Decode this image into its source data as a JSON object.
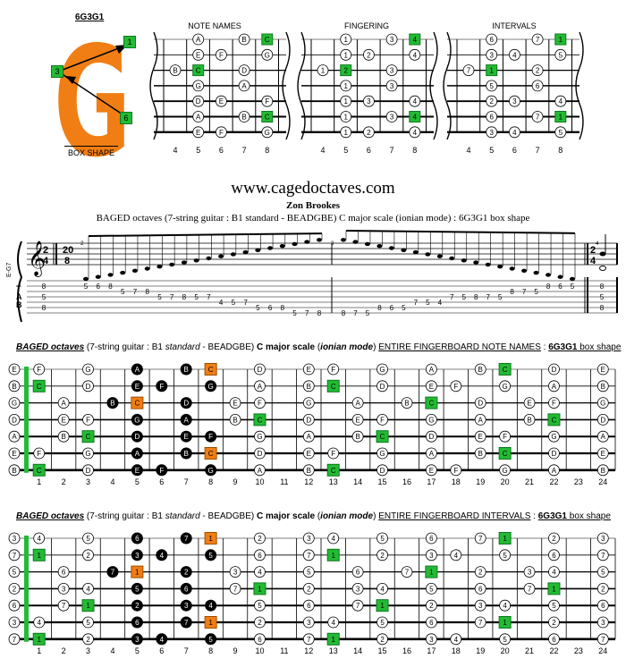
{
  "shape": {
    "name": "6G3G1",
    "big_letter": "G",
    "label": "BOX SHAPE",
    "markers": [
      "1",
      "3",
      "6"
    ]
  },
  "diagrams": {
    "titles": [
      "NOTE NAMES",
      "FINGERING",
      "INTERVALS"
    ],
    "fret_numbers": [
      "4",
      "5",
      "6",
      "7",
      "8"
    ],
    "note_names": [
      [
        "A",
        "B",
        "C"
      ],
      [
        "E",
        "F",
        "G"
      ],
      [
        "B",
        "C",
        "D"
      ],
      [
        "G",
        "A"
      ],
      [
        "D",
        "E",
        "F"
      ],
      [
        "A",
        "B",
        "C"
      ],
      [
        "E",
        "F",
        "G"
      ]
    ],
    "fingering": [
      [
        "1",
        "3",
        "4"
      ],
      [
        "1",
        "2",
        "4"
      ],
      [
        "1",
        "2",
        "3"
      ],
      [
        "1",
        "3"
      ],
      [
        "1",
        "3",
        "4"
      ],
      [
        "1",
        "3",
        "4"
      ],
      [
        "1",
        "2",
        "4"
      ]
    ],
    "intervals": [
      [
        "6",
        "7",
        "1"
      ],
      [
        "3",
        "4",
        "5"
      ],
      [
        "7",
        "1",
        "2"
      ],
      [
        "5",
        "6"
      ],
      [
        "2",
        "3",
        "4"
      ],
      [
        "6",
        "7",
        "1"
      ],
      [
        "3",
        "4",
        "5"
      ]
    ]
  },
  "header": {
    "website": "www.cagedoctaves.com",
    "author": "Zon Brookes",
    "subtitle": "BAGED octaves (7-string guitar : B1 standard - BEADGBE) C major scale (ionian mode) : 6G3G1 box shape"
  },
  "notation": {
    "time_sig_top": "2",
    "time_sig_bottom": "4",
    "time_sig2_top": "20",
    "time_sig2_bottom": "8",
    "measure1": "2",
    "measure2": "3",
    "measure3": "4",
    "staff_label": "E-G7",
    "tab_letters": [
      "T",
      "A",
      "B"
    ],
    "tab_left": [
      "8",
      "5",
      "8"
    ],
    "tab_right": [
      "8",
      "5",
      "8"
    ],
    "tab_up": [
      {
        "s": 7,
        "f": "5"
      },
      {
        "s": 7,
        "f": "6"
      },
      {
        "s": 7,
        "f": "8"
      },
      {
        "s": 6,
        "f": "5"
      },
      {
        "s": 6,
        "f": "7"
      },
      {
        "s": 6,
        "f": "8"
      },
      {
        "s": 5,
        "f": "5"
      },
      {
        "s": 5,
        "f": "7"
      },
      {
        "s": 5,
        "f": "8"
      },
      {
        "s": 4,
        "f": "5"
      },
      {
        "s": 4,
        "f": "7"
      },
      {
        "s": 3,
        "f": "4"
      },
      {
        "s": 3,
        "f": "5"
      },
      {
        "s": 3,
        "f": "7"
      },
      {
        "s": 2,
        "f": "5"
      },
      {
        "s": 2,
        "f": "6"
      },
      {
        "s": 2,
        "f": "8"
      },
      {
        "s": 1,
        "f": "5"
      },
      {
        "s": 1,
        "f": "7"
      },
      {
        "s": 1,
        "f": "8"
      }
    ],
    "tab_down": [
      {
        "s": 1,
        "f": "8"
      },
      {
        "s": 1,
        "f": "7"
      },
      {
        "s": 1,
        "f": "5"
      },
      {
        "s": 2,
        "f": "8"
      },
      {
        "s": 2,
        "f": "6"
      },
      {
        "s": 2,
        "f": "5"
      },
      {
        "s": 3,
        "f": "7"
      },
      {
        "s": 3,
        "f": "5"
      },
      {
        "s": 3,
        "f": "4"
      },
      {
        "s": 4,
        "f": "7"
      },
      {
        "s": 4,
        "f": "5"
      },
      {
        "s": 5,
        "f": "8"
      },
      {
        "s": 5,
        "f": "7"
      },
      {
        "s": 5,
        "f": "5"
      },
      {
        "s": 6,
        "f": "8"
      },
      {
        "s": 6,
        "f": "7"
      },
      {
        "s": 6,
        "f": "5"
      },
      {
        "s": 7,
        "f": "8"
      },
      {
        "s": 7,
        "f": "6"
      },
      {
        "s": 7,
        "f": "5"
      }
    ]
  },
  "fingerboard_notes": {
    "title_parts": [
      "BAGED octaves",
      " (7-string guitar : B1 ",
      "standard",
      " - BEADGBE) ",
      "C major scale",
      " (",
      "ionian mode",
      ") ",
      "ENTIRE FINGERBOARD NOTE NAMES",
      " : ",
      "6G3G1",
      " box shape"
    ],
    "strings": [
      {
        "open": "E",
        "notes": [
          "F",
          "",
          "G",
          "",
          "A",
          "",
          "B",
          "C",
          "",
          "D",
          "",
          "E",
          "F",
          "",
          "G",
          "",
          "A",
          "",
          "B",
          "C",
          "",
          "D",
          "",
          "E"
        ]
      },
      {
        "open": "B",
        "notes": [
          "C",
          "",
          "D",
          "",
          "E",
          "F",
          "",
          "G",
          "",
          "A",
          "",
          "B",
          "C",
          "",
          "D",
          "",
          "E",
          "F",
          "",
          "G",
          "",
          "A",
          "",
          "B"
        ]
      },
      {
        "open": "G",
        "notes": [
          "",
          "A",
          "",
          "B",
          "C",
          "",
          "D",
          "",
          "E",
          "F",
          "",
          "G",
          "",
          "A",
          "",
          "B",
          "C",
          "",
          "D",
          "",
          "E",
          "F",
          "",
          "G"
        ]
      },
      {
        "open": "D",
        "notes": [
          "",
          "E",
          "F",
          "",
          "G",
          "",
          "A",
          "",
          "B",
          "C",
          "",
          "D",
          "",
          "E",
          "F",
          "",
          "G",
          "",
          "A",
          "",
          "B",
          "C",
          "",
          "D"
        ]
      },
      {
        "open": "A",
        "notes": [
          "",
          "B",
          "C",
          "",
          "D",
          "",
          "E",
          "F",
          "",
          "G",
          "",
          "A",
          "",
          "B",
          "C",
          "",
          "D",
          "",
          "E",
          "F",
          "",
          "G",
          "",
          "A"
        ]
      },
      {
        "open": "E",
        "notes": [
          "F",
          "",
          "G",
          "",
          "A",
          "",
          "B",
          "C",
          "",
          "D",
          "",
          "E",
          "F",
          "",
          "G",
          "",
          "A",
          "",
          "B",
          "C",
          "",
          "D",
          "",
          "E"
        ]
      },
      {
        "open": "B",
        "notes": [
          "C",
          "",
          "D",
          "",
          "E",
          "F",
          "",
          "G",
          "",
          "A",
          "",
          "B",
          "C",
          "",
          "D",
          "",
          "E",
          "F",
          "",
          "G",
          "",
          "A",
          "",
          "B"
        ]
      }
    ],
    "fret_labels": [
      "1",
      "2",
      "3",
      "4",
      "5",
      "6",
      "7",
      "8",
      "9",
      "10",
      "11",
      "12",
      "13",
      "14",
      "15",
      "16",
      "17",
      "18",
      "19",
      "20",
      "21",
      "22",
      "23",
      "24"
    ]
  },
  "fingerboard_intervals": {
    "title_parts": [
      "BAGED octaves",
      " (7-string guitar : B1 ",
      "standard",
      " - BEADGBE) ",
      "C major scale",
      " (",
      "ionian mode",
      ") ",
      "ENTIRE FINGERBOARD INTERVALS",
      " : ",
      "6G3G1",
      " box shape"
    ],
    "strings": [
      {
        "open": "3",
        "notes": [
          "4",
          "",
          "5",
          "",
          "6",
          "",
          "7",
          "1",
          "",
          "2",
          "",
          "3",
          "4",
          "",
          "5",
          "",
          "6",
          "",
          "7",
          "1",
          "",
          "2",
          "",
          "3"
        ]
      },
      {
        "open": "7",
        "notes": [
          "1",
          "",
          "2",
          "",
          "3",
          "4",
          "",
          "5",
          "",
          "6",
          "",
          "7",
          "1",
          "",
          "2",
          "",
          "3",
          "4",
          "",
          "5",
          "",
          "6",
          "",
          "7"
        ]
      },
      {
        "open": "5",
        "notes": [
          "",
          "6",
          "",
          "7",
          "1",
          "",
          "2",
          "",
          "3",
          "4",
          "",
          "5",
          "",
          "6",
          "",
          "7",
          "1",
          "",
          "2",
          "",
          "3",
          "4",
          "",
          "5"
        ]
      },
      {
        "open": "2",
        "notes": [
          "",
          "3",
          "4",
          "",
          "5",
          "",
          "6",
          "",
          "7",
          "1",
          "",
          "2",
          "",
          "3",
          "4",
          "",
          "5",
          "",
          "6",
          "",
          "7",
          "1",
          "",
          "2"
        ]
      },
      {
        "open": "6",
        "notes": [
          "",
          "7",
          "1",
          "",
          "2",
          "",
          "3",
          "4",
          "",
          "5",
          "",
          "6",
          "",
          "7",
          "1",
          "",
          "2",
          "",
          "3",
          "4",
          "",
          "5",
          "",
          "6"
        ]
      },
      {
        "open": "3",
        "notes": [
          "4",
          "",
          "5",
          "",
          "6",
          "",
          "7",
          "1",
          "",
          "2",
          "",
          "3",
          "4",
          "",
          "5",
          "",
          "6",
          "",
          "7",
          "1",
          "",
          "2",
          "",
          "3"
        ]
      },
      {
        "open": "7",
        "notes": [
          "1",
          "",
          "2",
          "",
          "3",
          "4",
          "",
          "5",
          "",
          "6",
          "",
          "7",
          "1",
          "",
          "2",
          "",
          "3",
          "4",
          "",
          "5",
          "",
          "6",
          "",
          "7"
        ]
      }
    ],
    "fret_labels": [
      "1",
      "2",
      "3",
      "4",
      "5",
      "6",
      "7",
      "8",
      "9",
      "10",
      "11",
      "12",
      "13",
      "14",
      "15",
      "16",
      "17",
      "18",
      "19",
      "20",
      "21",
      "22",
      "23",
      "24"
    ]
  },
  "colors": {
    "root": "#22bb33",
    "box_root": "#f07e14",
    "box_note": "#000000",
    "brand_orange": "#f07e14"
  }
}
